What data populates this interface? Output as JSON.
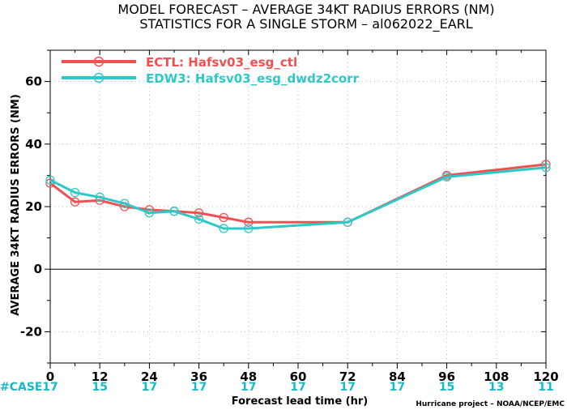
{
  "chart_data": {
    "type": "line",
    "title": "MODEL FORECAST – AVERAGE 34KT RADIUS ERRORS (NM)",
    "subtitle": "STATISTICS FOR A SINGLE STORM – al062022_EARL",
    "xlabel": "Forecast lead time (hr)",
    "ylabel": "AVERAGE 34KT RADIUS ERRORS (NM)",
    "xlim": [
      0,
      120
    ],
    "ylim": [
      -30,
      70
    ],
    "xticks": [
      0,
      12,
      24,
      36,
      48,
      60,
      72,
      84,
      96,
      108,
      120
    ],
    "yticks": [
      -20,
      0,
      20,
      40,
      60
    ],
    "grid": true,
    "legend_position": "top-left",
    "series": [
      {
        "name": "ECTL: Hafsv03_esg_ctl",
        "color": "#f05050",
        "x": [
          0,
          6,
          12,
          18,
          24,
          30,
          36,
          42,
          48,
          72,
          96,
          120
        ],
        "y": [
          27.5,
          21.5,
          22.0,
          20.0,
          19.0,
          18.5,
          18.0,
          16.5,
          15.0,
          15.0,
          30.0,
          33.5
        ]
      },
      {
        "name": "EDW3: Hafsv03_esg_dwdz2corr",
        "color": "#2ec8c8",
        "x": [
          0,
          6,
          12,
          18,
          24,
          30,
          36,
          42,
          48,
          72,
          96,
          120
        ],
        "y": [
          28.5,
          24.5,
          23.0,
          21.0,
          18.0,
          18.5,
          16.0,
          13.0,
          13.0,
          15.0,
          29.5,
          32.5
        ]
      }
    ],
    "case_label": "#CASE",
    "case_x": [
      0,
      12,
      24,
      36,
      48,
      60,
      72,
      84,
      96,
      108,
      120
    ],
    "case_counts": [
      "17",
      "15",
      "17",
      "17",
      "17",
      "17",
      "17",
      "17",
      "15",
      "13",
      "11"
    ],
    "credit": "Hurricane project – NOAA/NCEP/EMC"
  }
}
